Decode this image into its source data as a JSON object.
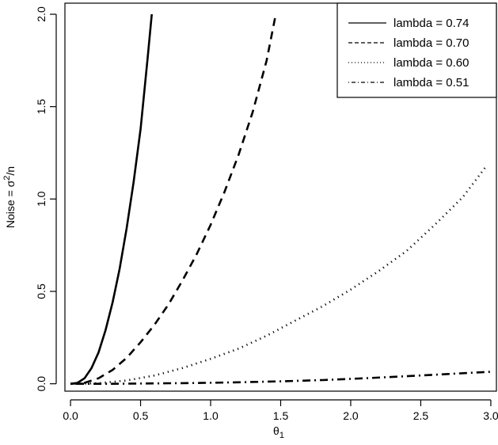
{
  "chart_data": {
    "type": "line",
    "title": "",
    "xlabel": "θ1",
    "ylabel": "Noise = σ2/n",
    "xlim": [
      -0.04,
      3.04
    ],
    "ylim": [
      -0.04,
      2.06
    ],
    "x_ticks": [
      {
        "value": 0.0,
        "label": "0.0"
      },
      {
        "value": 0.5,
        "label": "0.5"
      },
      {
        "value": 1.0,
        "label": "1.0"
      },
      {
        "value": 1.5,
        "label": "1.5"
      },
      {
        "value": 2.0,
        "label": "2.0"
      },
      {
        "value": 2.5,
        "label": "2.5"
      },
      {
        "value": 3.0,
        "label": "3.0"
      }
    ],
    "y_ticks": [
      {
        "value": 0.0,
        "label": "0.0"
      },
      {
        "value": 0.5,
        "label": "0.5"
      },
      {
        "value": 1.0,
        "label": "1.0"
      },
      {
        "value": 1.5,
        "label": "1.5"
      },
      {
        "value": 2.0,
        "label": "2.0"
      }
    ],
    "grid": false,
    "legend_position": "top-right",
    "series": [
      {
        "name": "lambda = 0.74",
        "line_style": "solid",
        "x": [
          0.0,
          0.05,
          0.1,
          0.15,
          0.2,
          0.25,
          0.3,
          0.35,
          0.4,
          0.45,
          0.5,
          0.55,
          0.58
        ],
        "y": [
          0.0,
          0.005,
          0.03,
          0.085,
          0.17,
          0.29,
          0.44,
          0.62,
          0.84,
          1.09,
          1.38,
          1.76,
          2.0
        ]
      },
      {
        "name": "lambda = 0.70",
        "line_style": "dashed",
        "x": [
          0.0,
          0.1,
          0.2,
          0.3,
          0.4,
          0.5,
          0.6,
          0.7,
          0.8,
          0.9,
          1.0,
          1.1,
          1.2,
          1.3,
          1.4,
          1.46
        ],
        "y": [
          0.0,
          0.005,
          0.03,
          0.075,
          0.14,
          0.225,
          0.32,
          0.43,
          0.56,
          0.7,
          0.86,
          1.04,
          1.24,
          1.47,
          1.75,
          1.98
        ]
      },
      {
        "name": "lambda = 0.60",
        "line_style": "dotted",
        "x": [
          0.0,
          0.2,
          0.4,
          0.6,
          0.8,
          1.0,
          1.2,
          1.4,
          1.6,
          1.8,
          2.0,
          2.2,
          2.4,
          2.6,
          2.8,
          2.97
        ],
        "y": [
          0.0,
          0.003,
          0.018,
          0.045,
          0.085,
          0.135,
          0.19,
          0.26,
          0.34,
          0.42,
          0.51,
          0.61,
          0.72,
          0.86,
          1.01,
          1.18
        ]
      },
      {
        "name": "lambda = 0.51",
        "line_style": "dotdash",
        "x": [
          0.0,
          0.3,
          0.6,
          0.9,
          1.2,
          1.5,
          1.8,
          2.1,
          2.4,
          2.7,
          3.0
        ],
        "y": [
          0.0,
          0.0,
          0.002,
          0.004,
          0.008,
          0.013,
          0.02,
          0.03,
          0.041,
          0.053,
          0.065
        ]
      }
    ]
  }
}
